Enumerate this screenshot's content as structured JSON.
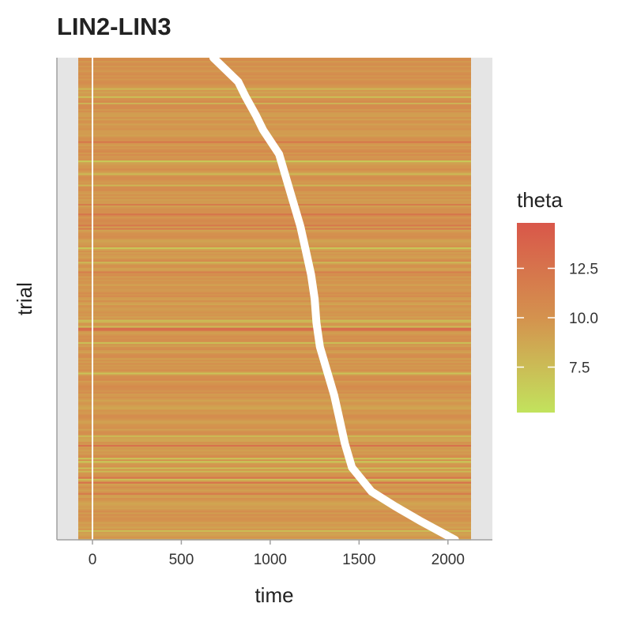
{
  "chart_data": {
    "type": "heatmap",
    "title": "LIN2-LIN3",
    "xlabel": "time",
    "ylabel": "trial",
    "xlim": [
      -200,
      2250
    ],
    "x_ticks": [
      0,
      500,
      1000,
      1500,
      2000
    ],
    "x_tick_labels": [
      "0",
      "500",
      "1000",
      "1500",
      "2000"
    ],
    "heat_x_range": [
      -80,
      2130
    ],
    "num_trials": 300,
    "zero_line_x": 0,
    "color_scale": {
      "name": "theta",
      "min": 5.2,
      "max": 14.8,
      "low_color": "#c2e35d",
      "mid_color": "#d4924e",
      "high_color": "#d9574a",
      "breaks": [
        12.5,
        10.0,
        7.5
      ],
      "break_labels": [
        "12.5",
        "10.0",
        "7.5"
      ]
    },
    "event_marker": {
      "color": "#ffffff",
      "trial_fraction_time": [
        [
          0.0,
          680
        ],
        [
          0.05,
          820
        ],
        [
          0.08,
          860
        ],
        [
          0.12,
          920
        ],
        [
          0.15,
          960
        ],
        [
          0.2,
          1050
        ],
        [
          0.25,
          1090
        ],
        [
          0.3,
          1130
        ],
        [
          0.35,
          1170
        ],
        [
          0.4,
          1200
        ],
        [
          0.45,
          1230
        ],
        [
          0.5,
          1250
        ],
        [
          0.55,
          1260
        ],
        [
          0.6,
          1280
        ],
        [
          0.65,
          1320
        ],
        [
          0.7,
          1360
        ],
        [
          0.75,
          1390
        ],
        [
          0.8,
          1420
        ],
        [
          0.85,
          1460
        ],
        [
          0.9,
          1570
        ],
        [
          0.93,
          1700
        ],
        [
          0.96,
          1840
        ],
        [
          1.0,
          2040
        ]
      ]
    },
    "legend_position": "right"
  }
}
